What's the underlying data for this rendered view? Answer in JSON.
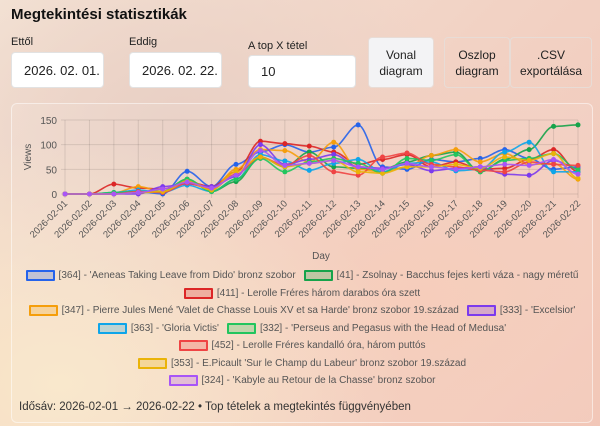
{
  "title": "Megtekintési statisztikák",
  "filters": {
    "from_label": "Ettől",
    "from_value": "2026. 02. 01.",
    "to_label": "Eddig",
    "to_value": "2026. 02. 22.",
    "top_label": "A top X tétel",
    "top_value": "10"
  },
  "buttons": {
    "line_l1": "Vonal",
    "line_l2": "diagram",
    "bar_l1": "Oszlop",
    "bar_l2": "diagram",
    "csv_l1": ".CSV",
    "csv_l2": "exportálása"
  },
  "footer": "Idősáv: 2026-02-01 → 2026-02-22 • Top tételek a megtekintés függvényében",
  "chart_data": {
    "type": "line",
    "xlabel": "Day",
    "ylabel": "Views",
    "ylim": [
      0,
      150
    ],
    "yticks": [
      "0",
      "50",
      "100",
      "150"
    ],
    "grid": true,
    "legend": "bottom",
    "x": [
      "2026-02-01",
      "2026-02-02",
      "2026-02-03",
      "2026-02-04",
      "2026-02-05",
      "2026-02-06",
      "2026-02-07",
      "2026-02-08",
      "2026-02-09",
      "2026-02-10",
      "2026-02-11",
      "2026-02-12",
      "2026-02-13",
      "2026-02-14",
      "2026-02-15",
      "2026-02-16",
      "2026-02-17",
      "2026-02-18",
      "2026-02-19",
      "2026-02-20",
      "2026-02-21",
      "2026-02-22"
    ],
    "series": [
      {
        "name": "[364] - 'Aeneas Taking Leave from Dido' bronz szobor",
        "color": "#2563eb",
        "values": [
          0,
          0,
          0,
          5,
          0,
          46,
          15,
          60,
          85,
          100,
          85,
          95,
          140,
          55,
          50,
          70,
          65,
          72,
          90,
          72,
          50,
          55
        ]
      },
      {
        "name": "[41] - Zsolnay - Bacchus fejes kerti váza - nagy méretű",
        "color": "#16a34a",
        "values": [
          0,
          0,
          2,
          3,
          5,
          30,
          5,
          25,
          75,
          55,
          85,
          55,
          52,
          50,
          65,
          78,
          85,
          45,
          70,
          90,
          137,
          140
        ]
      },
      {
        "name": "[411] - Lerolle Fréres három darabos óra szett",
        "color": "#dc2626",
        "values": [
          0,
          0,
          20,
          12,
          10,
          25,
          15,
          45,
          107,
          102,
          97,
          85,
          60,
          70,
          80,
          55,
          65,
          50,
          52,
          70,
          90,
          45
        ]
      },
      {
        "name": "[347] - Pierre Jules Mené 'Valet de Chasse Louis XV et sa Harde' bronz szobor 19.század",
        "color": "#f59e0b",
        "values": [
          0,
          0,
          2,
          15,
          5,
          28,
          10,
          50,
          90,
          88,
          65,
          105,
          50,
          45,
          55,
          78,
          90,
          65,
          82,
          60,
          62,
          30
        ]
      },
      {
        "name": "[333] - 'Excelsior'",
        "color": "#7c3aed",
        "values": [
          0,
          0,
          0,
          0,
          15,
          20,
          15,
          35,
          100,
          60,
          70,
          80,
          55,
          52,
          60,
          47,
          52,
          55,
          40,
          38,
          68,
          52
        ]
      },
      {
        "name": "[363] - 'Gloria Victis'",
        "color": "#0ea5e9",
        "values": [
          0,
          0,
          3,
          8,
          3,
          18,
          5,
          30,
          80,
          67,
          48,
          62,
          70,
          45,
          62,
          65,
          47,
          50,
          85,
          105,
          45,
          45
        ]
      },
      {
        "name": "[332] - 'Perseus and Pegasus with the Head of Medusa'",
        "color": "#22c55e",
        "values": [
          0,
          0,
          3,
          5,
          5,
          30,
          5,
          30,
          72,
          45,
          65,
          72,
          62,
          42,
          72,
          68,
          80,
          45,
          68,
          72,
          82,
          50
        ]
      },
      {
        "name": "[452] - Lerolle Fréres kandalló óra, három puttós",
        "color": "#ef4444",
        "values": [
          0,
          0,
          0,
          5,
          3,
          22,
          10,
          40,
          75,
          58,
          78,
          45,
          38,
          75,
          83,
          60,
          55,
          48,
          45,
          65,
          60,
          58
        ]
      },
      {
        "name": "[353] - E.Picault 'Sur le Champ du Labeur' bronz szobor 19.század",
        "color": "#eab308",
        "values": [
          0,
          0,
          0,
          3,
          5,
          25,
          8,
          45,
          75,
          55,
          62,
          68,
          45,
          42,
          55,
          55,
          60,
          52,
          75,
          68,
          82,
          32
        ]
      },
      {
        "name": "[324] - 'Kabyle au Retour de la Chasse' bronz szobor",
        "color": "#a855f7",
        "values": [
          0,
          0,
          0,
          3,
          10,
          24,
          12,
          38,
          88,
          58,
          62,
          68,
          55,
          50,
          62,
          55,
          50,
          55,
          60,
          58,
          70,
          40
        ]
      }
    ]
  }
}
